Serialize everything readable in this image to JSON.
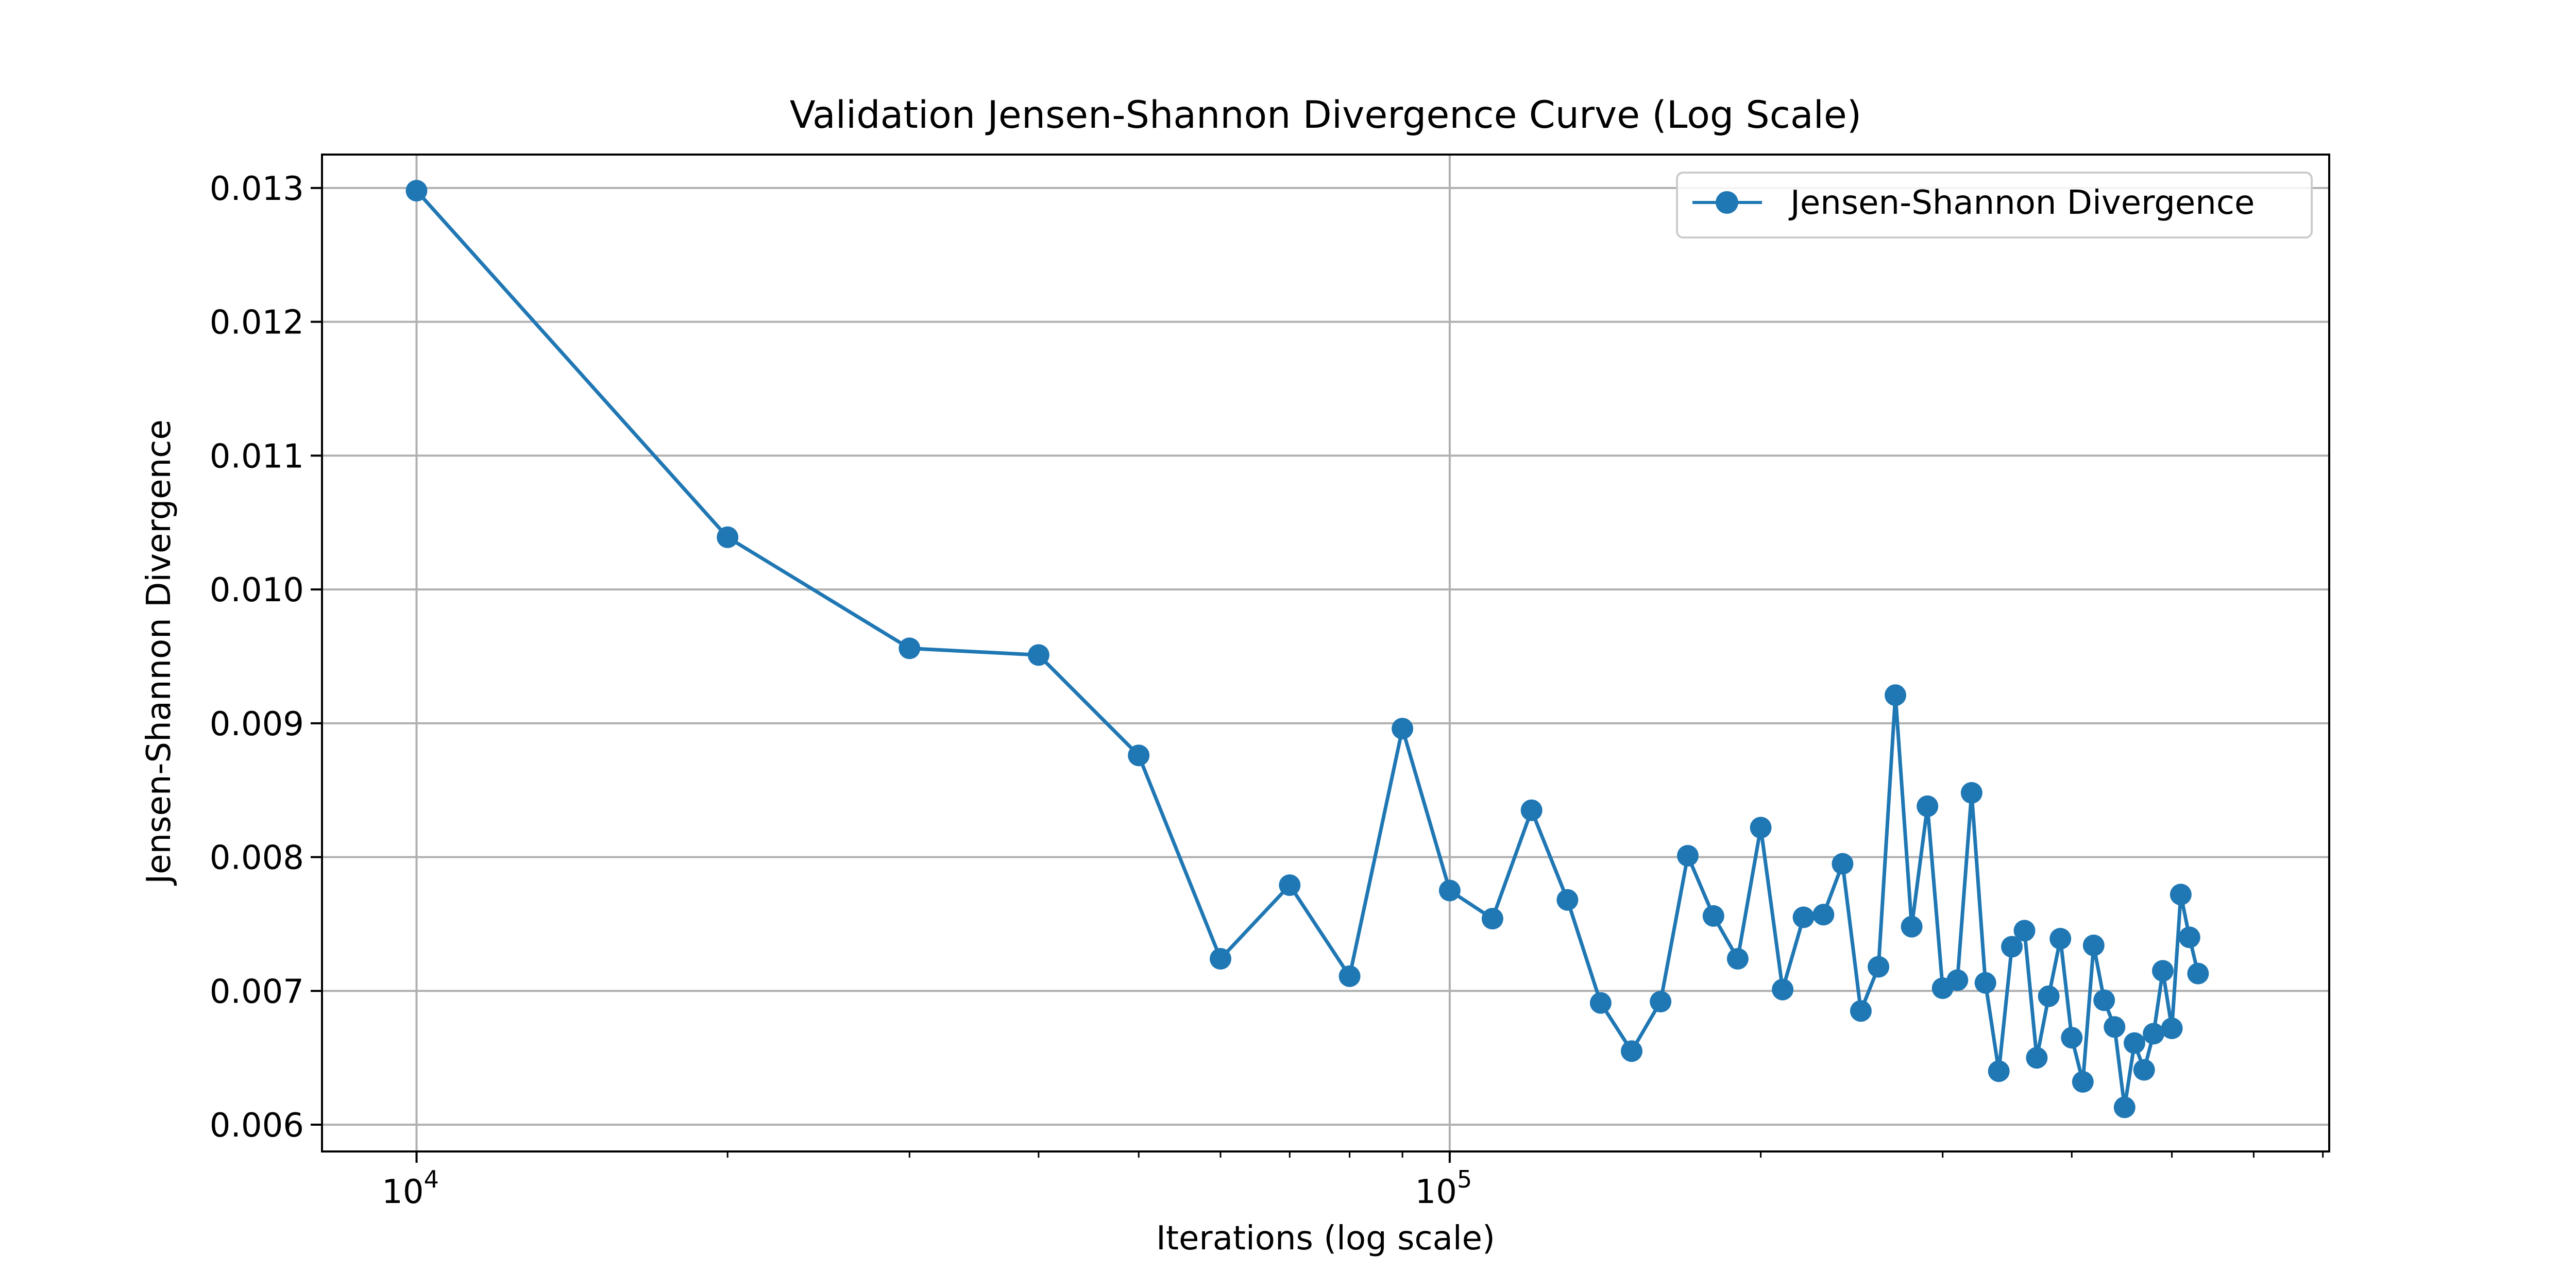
{
  "chart_data": {
    "type": "line",
    "title": "Validation Jensen-Shannon Divergence Curve (Log Scale)",
    "xlabel": "Iterations (log scale)",
    "ylabel": "Jensen-Shannon Divergence",
    "xscale": "log",
    "xlim": [
      8100,
      710000
    ],
    "ylim": [
      0.0058,
      0.01325
    ],
    "grid": true,
    "legend_position": "top-right",
    "x_major_ticks": [
      {
        "value": 10000,
        "base": "10",
        "exp": "4"
      },
      {
        "value": 100000,
        "base": "10",
        "exp": "5"
      }
    ],
    "x_minor_ticks": [
      20000,
      30000,
      40000,
      50000,
      60000,
      70000,
      80000,
      90000,
      200000,
      300000,
      400000,
      500000,
      600000,
      700000
    ],
    "y_ticks": [
      "0.006",
      "0.007",
      "0.008",
      "0.009",
      "0.010",
      "0.011",
      "0.012",
      "0.013"
    ],
    "colors": {
      "series": "#1f77b4",
      "grid": "#b0b0b0"
    },
    "series": [
      {
        "name": "Jensen-Shannon Divergence",
        "x": [
          10000,
          20000,
          30000,
          40000,
          50000,
          60000,
          70000,
          80000,
          90000,
          100000,
          110000,
          120000,
          130000,
          140000,
          150000,
          160000,
          170000,
          180000,
          190000,
          200000,
          210000,
          220000,
          230000,
          240000,
          250000,
          260000,
          270000,
          280000,
          290000,
          300000,
          310000,
          320000,
          330000,
          340000,
          350000,
          360000,
          370000,
          380000,
          390000,
          400000,
          410000,
          420000,
          430000,
          440000,
          450000,
          460000,
          470000,
          480000,
          490000,
          500000,
          510000,
          520000,
          530000
        ],
        "y": [
          0.01298,
          0.01039,
          0.00956,
          0.00951,
          0.00876,
          0.00724,
          0.00779,
          0.00711,
          0.00896,
          0.00775,
          0.00754,
          0.00835,
          0.00768,
          0.00691,
          0.00655,
          0.00692,
          0.00801,
          0.00756,
          0.00724,
          0.00822,
          0.00701,
          0.00755,
          0.00757,
          0.00795,
          0.00685,
          0.00718,
          0.00921,
          0.00748,
          0.00838,
          0.00702,
          0.00708,
          0.00848,
          0.00706,
          0.0064,
          0.00733,
          0.00745,
          0.0065,
          0.00696,
          0.00739,
          0.00665,
          0.00632,
          0.00734,
          0.00693,
          0.00673,
          0.00613,
          0.00661,
          0.00641,
          0.00668,
          0.00715,
          0.00672,
          0.00772,
          0.0074,
          0.00713
        ]
      }
    ]
  }
}
